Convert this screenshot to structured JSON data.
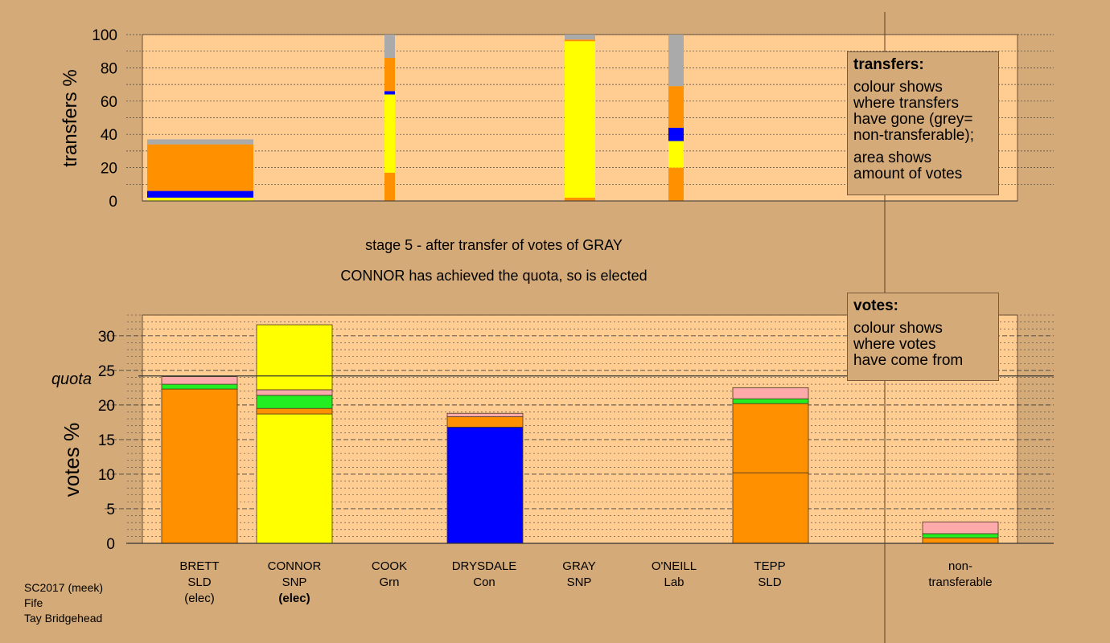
{
  "stage_title": "stage 5 - after transfer of votes of GRAY",
  "stage_subtitle": "CONNOR has achieved the quota, so is elected",
  "transfers_legend": {
    "title": "transfers:",
    "para1": "colour shows\nwhere transfers\nhave gone (grey=\nnon-transferable);",
    "para2": "area shows\namount of votes"
  },
  "votes_legend": {
    "title": "votes:",
    "para1": "colour shows\nwhere votes\nhave come from"
  },
  "footer": {
    "line1": "SC2017 (meek)",
    "line2": "Fife",
    "line3": "Tay Bridgehead"
  },
  "colors": {
    "background": "#d4aa78",
    "plot_bg": "#ffcc91",
    "SLD": "#ff9000",
    "SNP": "#ffff00",
    "Con": "#0000ff",
    "Grn": "#22ee22",
    "Lab": "#ffaaaa",
    "nontransferable": "#aaaaaa"
  },
  "chart_data": [
    {
      "type": "bar",
      "title": "",
      "ylabel": "transfers %",
      "ylim": [
        0,
        100
      ],
      "yticks": [
        "0",
        "20",
        "40",
        "60",
        "80",
        "100"
      ],
      "bars": [
        {
          "segments": [
            {
              "color": "SNP",
              "from": 0,
              "to": 2
            },
            {
              "color": "Con",
              "from": 2,
              "to": 6
            },
            {
              "color": "SLD",
              "from": 6,
              "to": 34
            },
            {
              "color": "nontransferable",
              "from": 34,
              "to": 37
            }
          ]
        },
        {
          "segments": [
            {
              "color": "SLD",
              "from": 0,
              "to": 17
            },
            {
              "color": "SNP",
              "from": 17,
              "to": 64
            },
            {
              "color": "Con",
              "from": 64,
              "to": 66
            },
            {
              "color": "SLD",
              "from": 66,
              "to": 86
            },
            {
              "color": "nontransferable",
              "from": 86,
              "to": 100
            }
          ]
        },
        {
          "segments": [
            {
              "color": "SLD",
              "from": 0,
              "to": 2
            },
            {
              "color": "SNP",
              "from": 2,
              "to": 96
            },
            {
              "color": "SLD",
              "from": 96,
              "to": 97
            },
            {
              "color": "nontransferable",
              "from": 97,
              "to": 100
            }
          ]
        },
        {
          "segments": [
            {
              "color": "SLD",
              "from": 0,
              "to": 20
            },
            {
              "color": "SNP",
              "from": 20,
              "to": 36
            },
            {
              "color": "Con",
              "from": 36,
              "to": 44
            },
            {
              "color": "SLD",
              "from": 44,
              "to": 69
            },
            {
              "color": "nontransferable",
              "from": 69,
              "to": 100
            }
          ]
        }
      ]
    },
    {
      "type": "bar",
      "title": "",
      "ylabel": "votes %",
      "ylim": [
        0,
        33
      ],
      "yticks": [
        "0",
        "5",
        "10",
        "15",
        "20",
        "25",
        "30"
      ],
      "quota": 24.2,
      "quota_label": "quota",
      "categories": [
        {
          "name": "BRETT",
          "party": "SLD",
          "status": "(elec)"
        },
        {
          "name": "CONNOR",
          "party": "SNP",
          "status": "(elec)"
        },
        {
          "name": "COOK",
          "party": "Grn",
          "status": ""
        },
        {
          "name": "DRYSDALE",
          "party": "Con",
          "status": ""
        },
        {
          "name": "GRAY",
          "party": "SNP",
          "status": ""
        },
        {
          "name": "O'NEILL",
          "party": "Lab",
          "status": ""
        },
        {
          "name": "TEPP",
          "party": "SLD",
          "status": ""
        }
      ],
      "nontransferable_label": {
        "line1": "non-",
        "line2": "transferable"
      },
      "stacks": [
        [
          {
            "color": "SLD",
            "from": 0,
            "to": 22.3
          },
          {
            "color": "Grn",
            "from": 22.3,
            "to": 23.0
          },
          {
            "color": "Lab",
            "from": 23.0,
            "to": 24.1
          }
        ],
        [
          {
            "color": "SNP",
            "from": 0,
            "to": 18.7
          },
          {
            "color": "SLD",
            "from": 18.7,
            "to": 19.5
          },
          {
            "color": "Grn",
            "from": 19.5,
            "to": 21.4
          },
          {
            "color": "Lab",
            "from": 21.4,
            "to": 22.2
          },
          {
            "color": "SNP",
            "from": 22.2,
            "to": 31.6
          }
        ],
        [],
        [
          {
            "color": "Con",
            "from": 0,
            "to": 16.8
          },
          {
            "color": "SLD",
            "from": 16.8,
            "to": 18.3
          },
          {
            "color": "Lab",
            "from": 18.3,
            "to": 18.8
          }
        ],
        [],
        [],
        [
          {
            "color": "SLD",
            "from": 0,
            "to": 10.2
          },
          {
            "color": "SLD",
            "from": 10.2,
            "to": 20.2
          },
          {
            "color": "Grn",
            "from": 20.2,
            "to": 20.9
          },
          {
            "color": "Lab",
            "from": 20.9,
            "to": 22.5
          }
        ],
        [
          {
            "color": "SLD",
            "from": 0,
            "to": 0.8
          },
          {
            "color": "Grn",
            "from": 0.8,
            "to": 1.4
          },
          {
            "color": "Lab",
            "from": 1.4,
            "to": 3.1
          }
        ]
      ]
    }
  ]
}
